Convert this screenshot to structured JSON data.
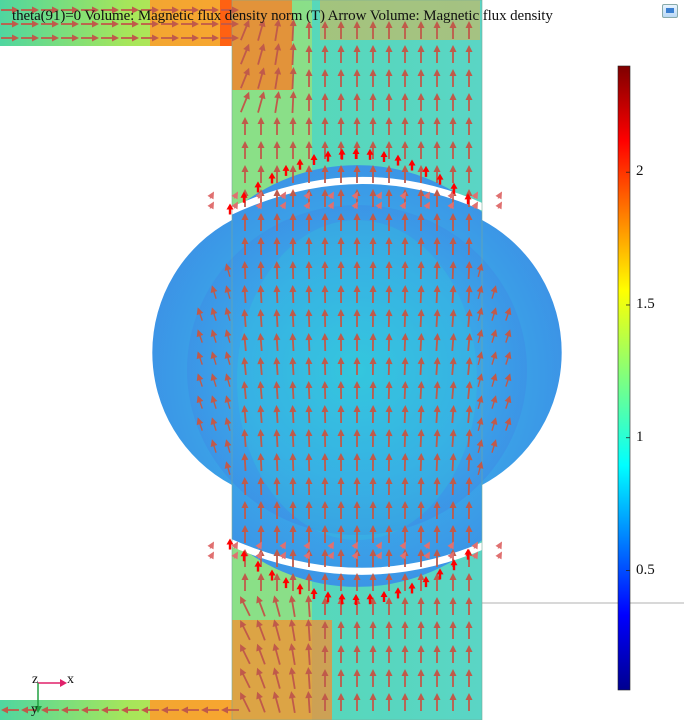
{
  "plot": {
    "title": "theta(91)=0   Volume: Magnetic flux density norm (T)  Arrow Volume: Magnetic flux density"
  },
  "colorbar": {
    "ticks": [
      {
        "label": "2",
        "value": 2.0
      },
      {
        "label": "1.5",
        "value": 1.5
      },
      {
        "label": "1",
        "value": 1.0
      },
      {
        "label": "0.5",
        "value": 0.5
      }
    ],
    "min": 0.05,
    "max": 2.4,
    "colormap": "rainbow"
  },
  "axes": {
    "x_label": "x",
    "y_label": "y",
    "z_label": "z"
  },
  "colors": {
    "arrow": "#c05a4a",
    "arrow_strong": "#ff0000",
    "axis_x": "#e0206a",
    "axis_y": "#20a040",
    "grid_line": "#b0b0b0"
  },
  "icons": {
    "corner": "view-settings-icon"
  }
}
